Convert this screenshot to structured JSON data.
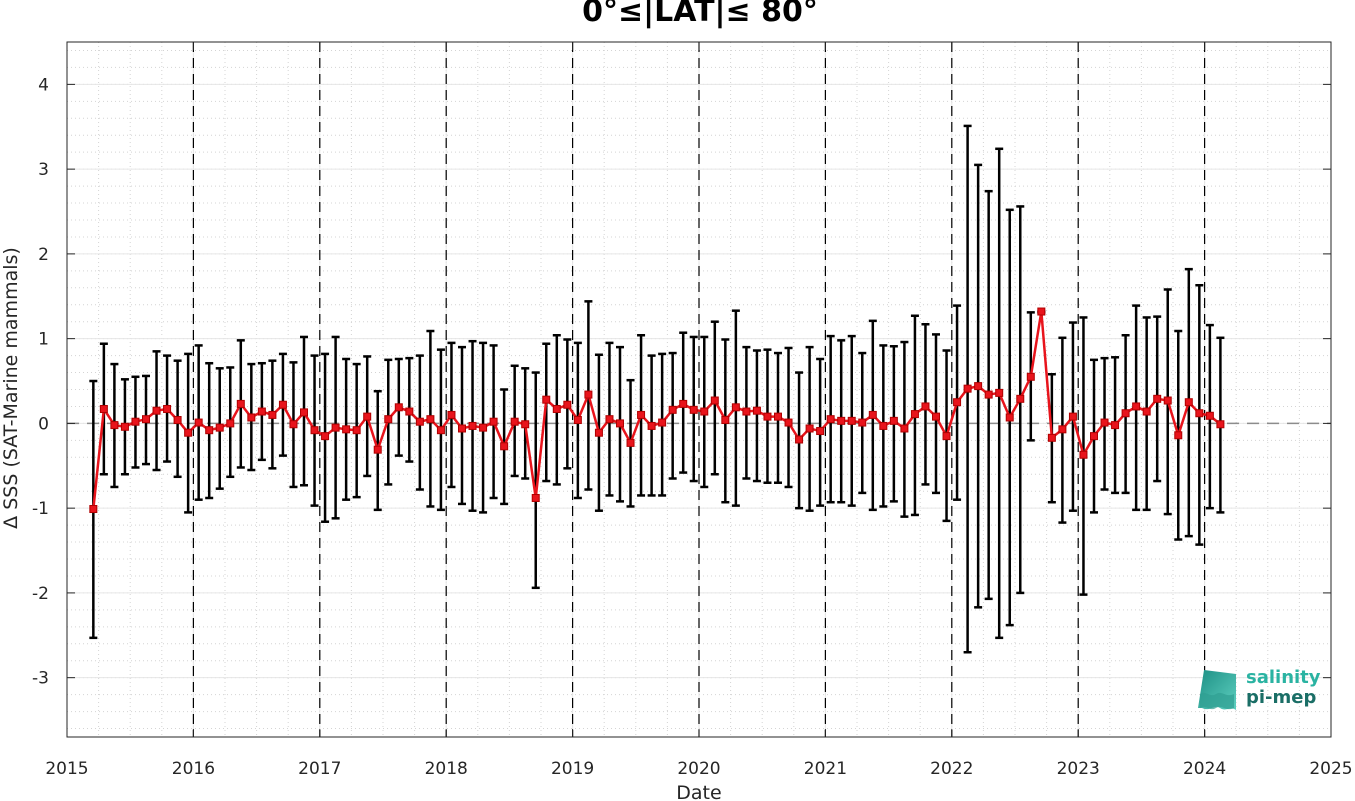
{
  "chart_data": {
    "type": "line",
    "title": "0°≤|LAT|≤ 80°",
    "xlabel": "Date",
    "ylabel": "Δ SSS (SAT-Marine mammals)",
    "xlim": [
      2015,
      2025
    ],
    "ylim": [
      -3.7,
      4.5
    ],
    "xticks": [
      "2015",
      "2016",
      "2017",
      "2018",
      "2019",
      "2020",
      "2021",
      "2022",
      "2023",
      "2024",
      "2025"
    ],
    "yticks": [
      "-3",
      "-2",
      "-1",
      "0",
      "1",
      "2",
      "3",
      "4"
    ],
    "grid": true,
    "series_color": "#e8141c",
    "errorbar_color": "#000000",
    "reference_line_y": 0,
    "series": [
      {
        "x": [
          "2015-03",
          "2015-04",
          "2015-05",
          "2015-06",
          "2015-07",
          "2015-08",
          "2015-09",
          "2015-10",
          "2015-11",
          "2015-12",
          "2016-01",
          "2016-02",
          "2016-03",
          "2016-04",
          "2016-05",
          "2016-06",
          "2016-07",
          "2016-08",
          "2016-09",
          "2016-10",
          "2016-11",
          "2016-12",
          "2017-01",
          "2017-02",
          "2017-03",
          "2017-04",
          "2017-05",
          "2017-06",
          "2017-07",
          "2017-08",
          "2017-09",
          "2017-10",
          "2017-11",
          "2017-12",
          "2018-01",
          "2018-02",
          "2018-03",
          "2018-04",
          "2018-05",
          "2018-06",
          "2018-07",
          "2018-08",
          "2018-09",
          "2018-10",
          "2018-11",
          "2018-12",
          "2019-01",
          "2019-02",
          "2019-03",
          "2019-04",
          "2019-05",
          "2019-06",
          "2019-07",
          "2019-08",
          "2019-09",
          "2019-10",
          "2019-11",
          "2019-12",
          "2020-01",
          "2020-02",
          "2020-03",
          "2020-04",
          "2020-05",
          "2020-06",
          "2020-07",
          "2020-08",
          "2020-09",
          "2020-10",
          "2020-11",
          "2020-12",
          "2021-01",
          "2021-02",
          "2021-03",
          "2021-04",
          "2021-05",
          "2021-06",
          "2021-07",
          "2021-08",
          "2021-09",
          "2021-10",
          "2021-11",
          "2021-12",
          "2022-01",
          "2022-02",
          "2022-03",
          "2022-04",
          "2022-05",
          "2022-06",
          "2022-07",
          "2022-08",
          "2022-09",
          "2022-10",
          "2022-11",
          "2022-12",
          "2023-01",
          "2023-02",
          "2023-03",
          "2023-04",
          "2023-05",
          "2023-06",
          "2023-07",
          "2023-08",
          "2023-09",
          "2023-10",
          "2023-11",
          "2023-12",
          "2024-01",
          "2024-02"
        ],
        "values": [
          -1.01,
          0.17,
          -0.02,
          -0.04,
          0.02,
          0.05,
          0.15,
          0.17,
          0.04,
          -0.11,
          0.01,
          -0.08,
          -0.05,
          0.0,
          0.23,
          0.07,
          0.14,
          0.1,
          0.22,
          -0.01,
          0.13,
          -0.08,
          -0.15,
          -0.05,
          -0.07,
          -0.08,
          0.08,
          -0.31,
          0.05,
          0.19,
          0.14,
          0.02,
          0.05,
          -0.08,
          0.1,
          -0.06,
          -0.03,
          -0.05,
          0.02,
          -0.27,
          0.02,
          -0.01,
          -0.88,
          0.28,
          0.17,
          0.22,
          0.04,
          0.34,
          -0.11,
          0.05,
          0.0,
          -0.23,
          0.1,
          -0.03,
          0.01,
          0.16,
          0.23,
          0.16,
          0.14,
          0.27,
          0.04,
          0.19,
          0.14,
          0.15,
          0.08,
          0.08,
          0.01,
          -0.19,
          -0.06,
          -0.09,
          0.05,
          0.03,
          0.03,
          0.01,
          0.1,
          -0.03,
          0.03,
          -0.06,
          0.11,
          0.2,
          0.08,
          -0.15,
          0.25,
          0.41,
          0.44,
          0.34,
          0.36,
          0.07,
          0.29,
          0.55,
          1.32,
          -0.17,
          -0.07,
          0.08,
          -0.37,
          -0.15,
          0.01,
          -0.02,
          0.12,
          0.2,
          0.14,
          0.29,
          0.27,
          -0.14,
          0.25,
          0.12,
          0.09,
          -0.01
        ],
        "err_low": [
          -2.53,
          -0.6,
          -0.75,
          -0.6,
          -0.52,
          -0.48,
          -0.55,
          -0.45,
          -0.63,
          -1.05,
          -0.9,
          -0.88,
          -0.77,
          -0.63,
          -0.52,
          -0.55,
          -0.43,
          -0.53,
          -0.38,
          -0.75,
          -0.73,
          -0.97,
          -1.16,
          -1.12,
          -0.9,
          -0.87,
          -0.62,
          -1.02,
          -0.72,
          -0.38,
          -0.45,
          -0.78,
          -0.98,
          -1.02,
          -0.75,
          -0.95,
          -1.03,
          -1.05,
          -0.88,
          -0.95,
          -0.62,
          -0.65,
          -1.94,
          -0.68,
          -0.72,
          -0.53,
          -0.88,
          -0.78,
          -1.03,
          -0.85,
          -0.92,
          -0.98,
          -0.85,
          -0.85,
          -0.85,
          -0.65,
          -0.58,
          -0.68,
          -0.75,
          -0.6,
          -0.93,
          -0.97,
          -0.65,
          -0.68,
          -0.7,
          -0.7,
          -0.75,
          -1.0,
          -1.03,
          -0.97,
          -0.93,
          -0.93,
          -0.97,
          -0.82,
          -1.02,
          -0.98,
          -0.92,
          -1.1,
          -1.08,
          -0.72,
          -0.82,
          -1.15,
          -0.9,
          -2.7,
          -2.17,
          -2.07,
          -2.53,
          -2.38,
          -2.0,
          -0.2,
          1.32,
          -0.93,
          -1.17,
          -1.03,
          -2.02,
          -1.05,
          -0.78,
          -0.82,
          -0.82,
          -1.02,
          -1.02,
          -0.68,
          -1.07,
          -1.37,
          -1.33,
          -1.43,
          -1.0,
          -1.05
        ],
        "err_high": [
          0.5,
          0.94,
          0.7,
          0.52,
          0.55,
          0.56,
          0.85,
          0.8,
          0.74,
          0.82,
          0.92,
          0.71,
          0.65,
          0.66,
          0.98,
          0.7,
          0.71,
          0.74,
          0.82,
          0.72,
          1.02,
          0.8,
          0.82,
          1.02,
          0.76,
          0.7,
          0.79,
          0.38,
          0.75,
          0.76,
          0.77,
          0.8,
          1.09,
          0.87,
          0.95,
          0.9,
          0.97,
          0.95,
          0.92,
          0.4,
          0.68,
          0.65,
          0.6,
          0.94,
          1.04,
          0.99,
          0.95,
          1.44,
          0.81,
          0.95,
          0.9,
          0.51,
          1.04,
          0.8,
          0.82,
          0.83,
          1.07,
          1.02,
          1.02,
          1.2,
          0.99,
          1.33,
          0.9,
          0.86,
          0.87,
          0.83,
          0.89,
          0.6,
          0.9,
          0.76,
          1.03,
          0.98,
          1.03,
          0.83,
          1.21,
          0.92,
          0.91,
          0.96,
          1.27,
          1.17,
          1.05,
          0.86,
          1.39,
          3.51,
          3.05,
          2.74,
          3.24,
          2.52,
          2.56,
          1.31,
          1.31,
          0.58,
          1.01,
          1.19,
          1.25,
          0.75,
          0.77,
          0.78,
          1.04,
          1.39,
          1.25,
          1.26,
          1.58,
          1.09,
          1.82,
          1.63,
          1.16,
          1.01
        ]
      }
    ]
  },
  "logo": {
    "line1": "salinity",
    "line2": "pi-mep"
  }
}
